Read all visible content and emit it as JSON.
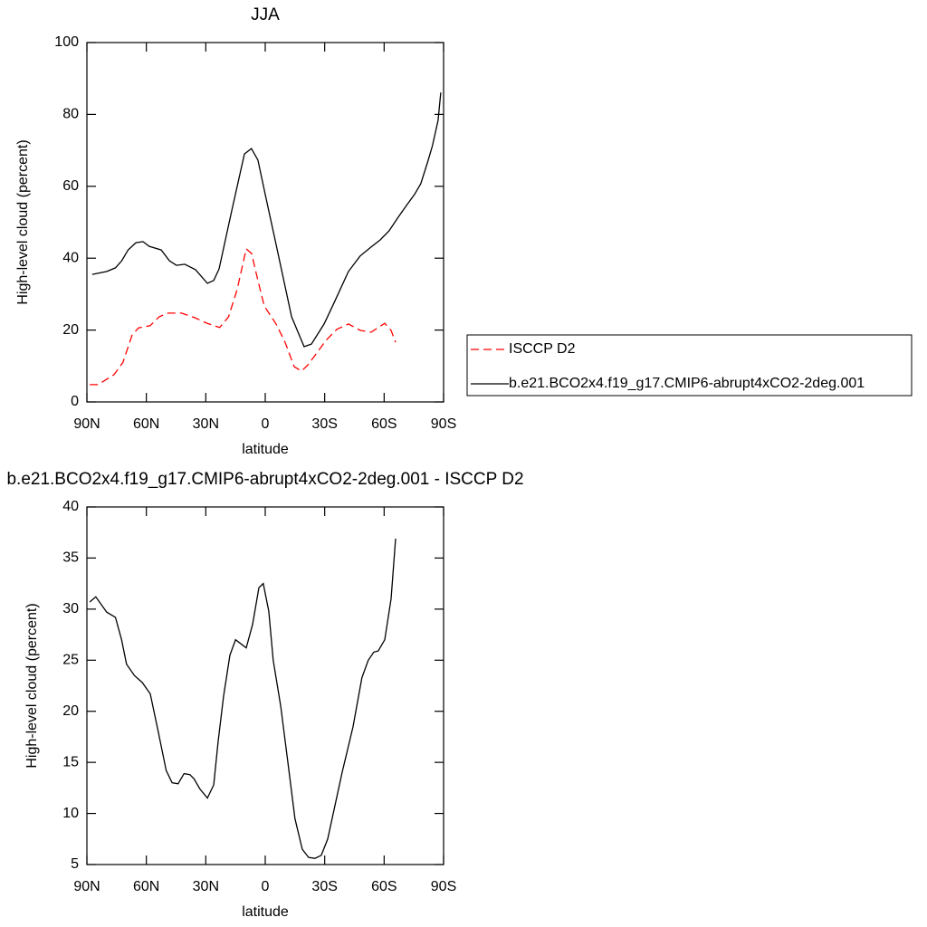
{
  "chart_data": [
    {
      "type": "line",
      "title": "JJA",
      "xlabel": "latitude",
      "ylabel": "High-level cloud (percent)",
      "xlim": [
        90,
        -90
      ],
      "xticks": [
        {
          "value": 90,
          "label": "90N"
        },
        {
          "value": 60,
          "label": "60N"
        },
        {
          "value": 30,
          "label": "30N"
        },
        0,
        {
          "value": -30,
          "label": "30S"
        },
        {
          "value": -60,
          "label": "60S"
        },
        {
          "value": -90,
          "label": "90S"
        }
      ],
      "ylim": [
        0,
        100
      ],
      "yticks": [
        0,
        20,
        40,
        60,
        80,
        100
      ],
      "legend": "right",
      "series": [
        {
          "name": "ISCCP D2",
          "color": "#ff0000",
          "dash": "dashed",
          "x": [
            88.6,
            84.5,
            80.9,
            76.3,
            71.8,
            67.2,
            64,
            58.1,
            53.5,
            49,
            42.2,
            35.3,
            29.4,
            23,
            18.5,
            14.2,
            9.6,
            6.9,
            3.7,
            0.5,
            -5.5,
            -10,
            -14.6,
            -18.3,
            -21.5,
            -26,
            -30.6,
            -36.1,
            -42,
            -48,
            -53.4,
            -60.3,
            -63.5,
            -65.8
          ],
          "values": [
            4.8,
            4.8,
            6,
            7.6,
            11,
            18.6,
            20.6,
            21.2,
            23.7,
            24.7,
            24.7,
            23.4,
            21.9,
            20.7,
            23.7,
            31.2,
            42.6,
            41.3,
            33.8,
            26.7,
            21.7,
            16.6,
            9.8,
            8.6,
            10.3,
            13.6,
            17.1,
            20.2,
            21.7,
            19.9,
            19.4,
            21.9,
            19.9,
            16.6
          ]
        },
        {
          "name": "b.e21.BCO2x4.f19_g17.CMIP6-abrupt4xCO2-2deg.001",
          "color": "#000000",
          "dash": "solid",
          "x": [
            87.3,
            80,
            75.6,
            72.4,
            69.2,
            65.3,
            61.7,
            58.5,
            52.5,
            48.4,
            44.8,
            40.6,
            35.2,
            29.2,
            26,
            23.3,
            17,
            10.5,
            7,
            3.7,
            0,
            -5.5,
            -13.3,
            -19.6,
            -23.3,
            -29.7,
            -35.1,
            -42,
            -47.9,
            -53.4,
            -58,
            -62.5,
            -67.1,
            -71.6,
            -75.3,
            -78.5,
            -82.1,
            -84.4,
            -87.2,
            -88.6
          ],
          "values": [
            35.5,
            36.3,
            37.3,
            39.3,
            42.3,
            44.3,
            44.6,
            43.3,
            42.3,
            39.3,
            38,
            38.3,
            36.8,
            33,
            33.8,
            37,
            53,
            69,
            70.5,
            67.3,
            57.7,
            43.8,
            23.7,
            15.4,
            16.1,
            21.7,
            28,
            36.3,
            40.6,
            43.1,
            45.1,
            47.6,
            51.4,
            54.9,
            57.7,
            60.7,
            67,
            71.3,
            78.3,
            86.1
          ]
        }
      ]
    },
    {
      "type": "line",
      "title": "b.e21.BCO2x4.f19_g17.CMIP6-abrupt4xCO2-2deg.001 - ISCCP D2",
      "xlabel": "latitude",
      "ylabel": "High-level cloud (percent)",
      "xlim": [
        90,
        -90
      ],
      "xticks": [
        {
          "value": 90,
          "label": "90N"
        },
        {
          "value": 60,
          "label": "60N"
        },
        {
          "value": 30,
          "label": "30N"
        },
        0,
        {
          "value": -30,
          "label": "30S"
        },
        {
          "value": -60,
          "label": "60S"
        },
        {
          "value": -90,
          "label": "90S"
        }
      ],
      "ylim": [
        5,
        40
      ],
      "yticks": [
        5,
        10,
        15,
        20,
        25,
        30,
        35,
        40
      ],
      "series": [
        {
          "color": "#000000",
          "dash": "solid",
          "x": [
            88.6,
            85.5,
            80,
            75.6,
            72.5,
            70,
            66,
            62,
            58,
            54,
            50,
            47,
            44,
            41,
            38,
            36,
            33,
            29.2,
            26,
            23.8,
            21,
            17.8,
            15,
            9.6,
            6.4,
            3.2,
            1,
            -1.8,
            -4,
            -7.8,
            -11.4,
            -15,
            -18.7,
            -21.9,
            -25.1,
            -28.3,
            -31.5,
            -34.3,
            -38.8,
            -44.3,
            -48.8,
            -52,
            -54.8,
            -57,
            -60.3,
            -63.5,
            -65.8
          ],
          "values": [
            30.7,
            31.2,
            29.7,
            29.2,
            27,
            24.6,
            23.5,
            22.8,
            21.7,
            18,
            14.2,
            13,
            12.9,
            13.9,
            13.8,
            13.4,
            12.4,
            11.5,
            12.8,
            17,
            21.5,
            25.5,
            27,
            26.2,
            28.5,
            32.1,
            32.5,
            29.8,
            25,
            20.5,
            15,
            9.5,
            6.5,
            5.7,
            5.6,
            5.9,
            7.5,
            10,
            14,
            18.5,
            23.3,
            25,
            25.8,
            25.9,
            27,
            31,
            36.9
          ]
        }
      ]
    }
  ]
}
